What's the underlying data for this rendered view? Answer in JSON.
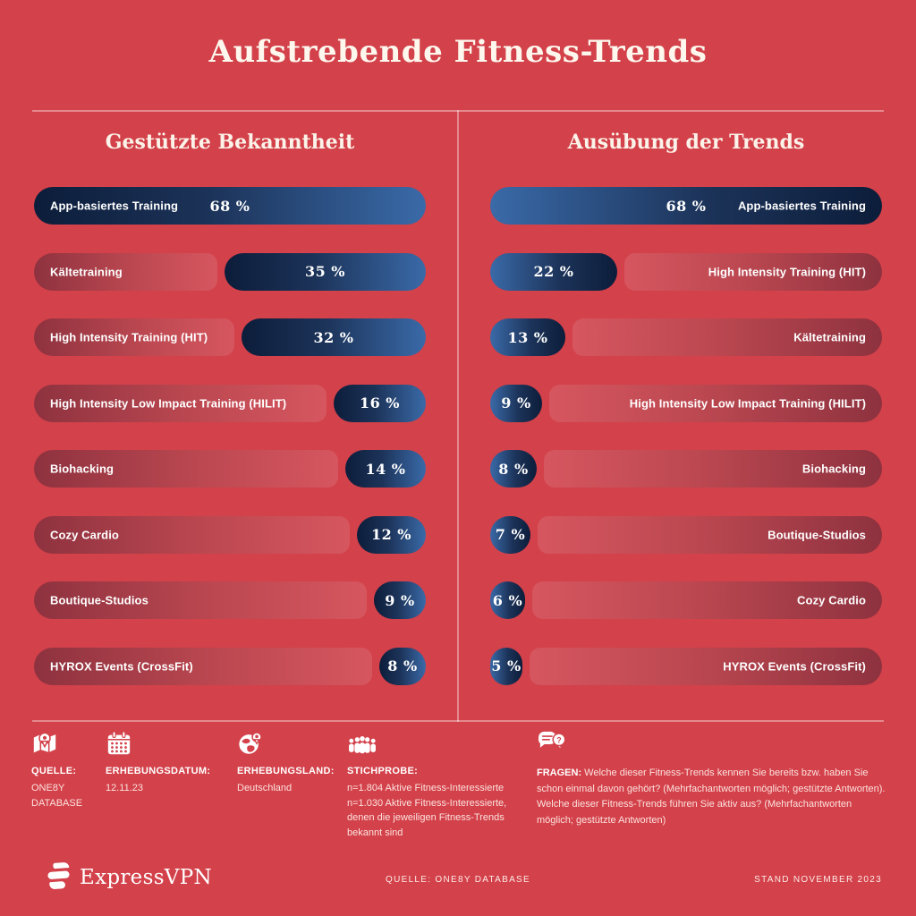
{
  "page": {
    "title": "Aufstrebende Fitness-Trends"
  },
  "colors": {
    "background": "#D3414A",
    "bar_fill_dark": "#0C1D3A",
    "bar_fill_blue": "#3A6AA8",
    "bar_track_dark_red": "#8E323F",
    "bar_track_light_red": "#D6565F",
    "divider": "rgba(255,255,255,0.38)",
    "text": "#FFFFFF"
  },
  "chart_data": [
    {
      "type": "bar",
      "orientation": "horizontal",
      "title": "Gestützte Bekanntheit",
      "unit": "%",
      "scale_max": 68,
      "label_side": "left",
      "value_side": "right",
      "categories": [
        "App-basiertes Training",
        "Kältetraining",
        "High Intensity Training (HIT)",
        "High Intensity Low Impact Training (HILIT)",
        "Biohacking",
        "Cozy Cardio",
        "Boutique-Studios",
        "HYROX Events (CrossFit)"
      ],
      "values": [
        68,
        35,
        32,
        16,
        14,
        12,
        9,
        8
      ],
      "value_labels": [
        "68 %",
        "35 %",
        "32 %",
        "16 %",
        "14 %",
        "12 %",
        "9 %",
        "8 %"
      ]
    },
    {
      "type": "bar",
      "orientation": "horizontal",
      "title": "Ausübung der Trends",
      "unit": "%",
      "scale_max": 68,
      "label_side": "right",
      "value_side": "left",
      "categories": [
        "App-basiertes Training",
        "High Intensity Training (HIT)",
        "Kältetraining",
        "High Intensity Low Impact Training (HILIT)",
        "Biohacking",
        "Boutique-Studios",
        "Cozy Cardio",
        "HYROX Events (CrossFit)"
      ],
      "values": [
        68,
        22,
        13,
        9,
        8,
        7,
        6,
        5
      ],
      "value_labels": [
        "68 %",
        "22 %",
        "13 %",
        "9 %",
        "8 %",
        "7 %",
        "6 %",
        "5 %"
      ]
    }
  ],
  "footer": {
    "items": [
      {
        "icon": "map-pin-icon",
        "heading": "QUELLE:",
        "body": "ONE8Y\nDATABASE"
      },
      {
        "icon": "calendar-icon",
        "heading": "ERHEBUNGSDATUM:",
        "body": "12.11.23"
      },
      {
        "icon": "globe-pin-icon",
        "heading": "ERHEBUNGSLAND:",
        "body": "Deutschland"
      },
      {
        "icon": "people-group-icon",
        "heading": "STICHPROBE:",
        "body": "n=1.804 Aktive Fitness-Interessierte\nn=1.030 Aktive Fitness-Interessierte,\ndenen die jeweiligen Fitness-Trends\nbekannt sind"
      },
      {
        "icon": "chat-question-icon",
        "heading": "FRAGEN:",
        "body": "Welche dieser Fitness-Trends kennen Sie bereits bzw. haben Sie schon einmal davon gehört? (Mehrfachantworten möglich; gestützte Antworten). Welche dieser Fitness-Trends führen Sie aktiv aus? (Mehrfachantworten möglich; gestützte Antworten)"
      }
    ]
  },
  "bottom_bar": {
    "brand": "ExpressVPN",
    "source": "QUELLE: ONE8Y DATABASE",
    "stand": "STAND NOVEMBER 2023"
  }
}
